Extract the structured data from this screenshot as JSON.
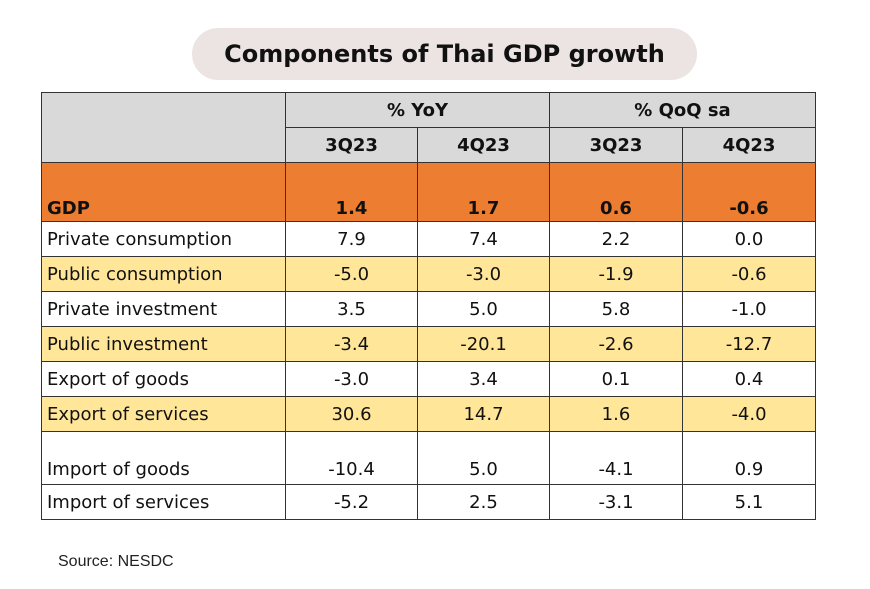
{
  "title": "Components of Thai GDP growth",
  "source": "Source: NESDC",
  "chart_data": {
    "type": "table",
    "title": "Components of Thai GDP growth",
    "column_groups": [
      {
        "label": "% YoY",
        "columns": [
          "3Q23",
          "4Q23"
        ]
      },
      {
        "label": "% QoQ sa",
        "columns": [
          "3Q23",
          "4Q23"
        ]
      }
    ],
    "rows": [
      {
        "label": "GDP",
        "values": [
          "1.4",
          "1.7",
          "0.6",
          "-0.6"
        ]
      },
      {
        "label": "Private consumption",
        "values": [
          "7.9",
          "7.4",
          "2.2",
          "0.0"
        ]
      },
      {
        "label": "Public consumption",
        "values": [
          "-5.0",
          "-3.0",
          "-1.9",
          "-0.6"
        ]
      },
      {
        "label": "Private investment",
        "values": [
          "3.5",
          "5.0",
          "5.8",
          "-1.0"
        ]
      },
      {
        "label": "Public investment",
        "values": [
          "-3.4",
          "-20.1",
          "-2.6",
          "-12.7"
        ]
      },
      {
        "label": "Export of goods",
        "values": [
          "-3.0",
          "3.4",
          "0.1",
          "0.4"
        ]
      },
      {
        "label": "Export of services",
        "values": [
          "30.6",
          "14.7",
          "1.6",
          "-4.0"
        ]
      },
      {
        "label": "Import of goods",
        "values": [
          "-10.4",
          "5.0",
          "-4.1",
          "0.9"
        ]
      },
      {
        "label": "Import of services",
        "values": [
          "-5.2",
          "2.5",
          "-3.1",
          "5.1"
        ]
      }
    ]
  },
  "colors": {
    "header": "#d9d9d9",
    "gdp_row": "#ed7d31",
    "alternate_row": "#ffe699",
    "title_pill": "#ebe4e2"
  }
}
